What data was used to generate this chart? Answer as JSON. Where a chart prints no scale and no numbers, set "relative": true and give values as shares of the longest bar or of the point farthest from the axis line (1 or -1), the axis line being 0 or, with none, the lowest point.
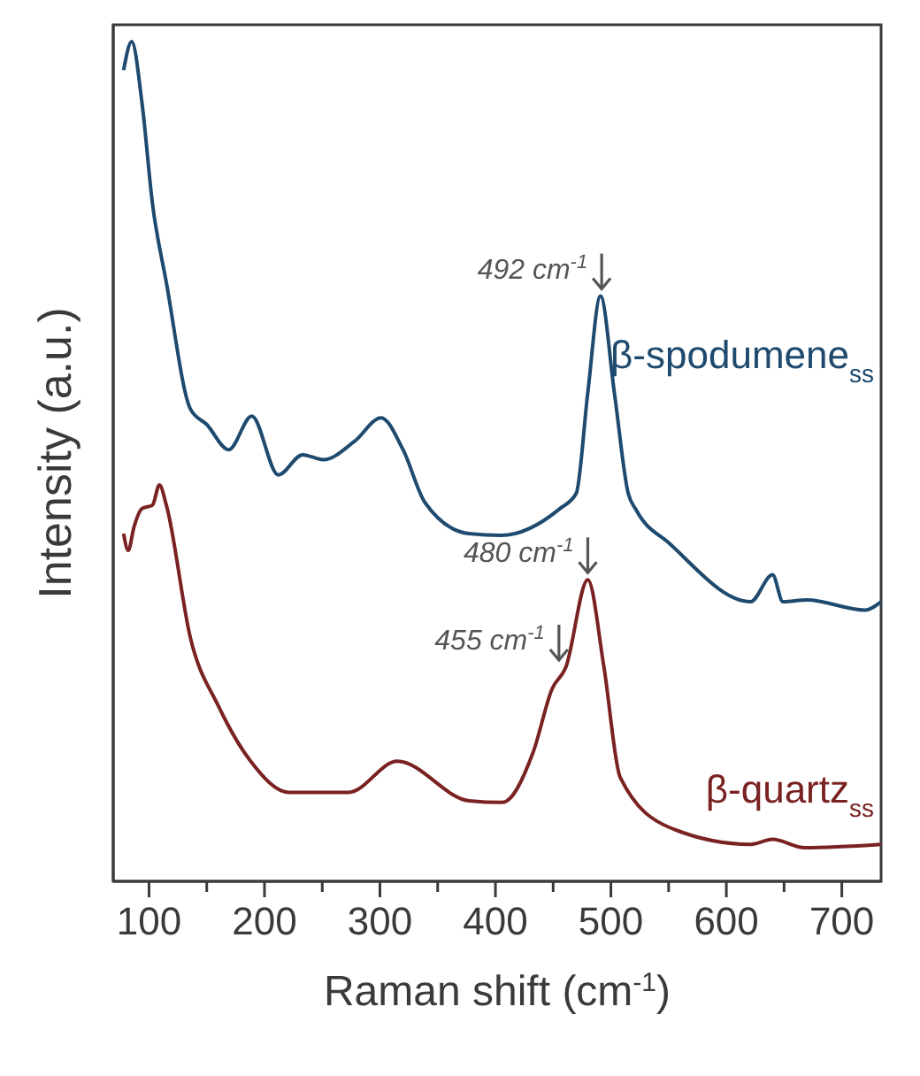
{
  "chart_data": {
    "type": "line",
    "relative": true,
    "xlabel": "Raman shift (cm$^{-1}$)",
    "ylabel": "Intensity (a.u.)",
    "xlim": [
      69,
      734
    ],
    "xticks": [
      100,
      {
        "value": 150,
        "label": null
      },
      200,
      {
        "value": 250,
        "label": null
      },
      300,
      {
        "value": 350,
        "label": null
      },
      400,
      {
        "value": 450,
        "label": null
      },
      500,
      {
        "value": 550,
        "label": null
      },
      600,
      {
        "value": 650,
        "label": null
      },
      700
    ],
    "marker": "none",
    "line_style": "solid",
    "series": [
      {
        "name": "β-spodumene$_{ss}$",
        "color": "#1d4a6e",
        "x": [
          78,
          85,
          94,
          103,
          115,
          136,
          150,
          169,
          189,
          212,
          233,
          251,
          278,
          301,
          320,
          339,
          377,
          405,
          456,
          470,
          480,
          491,
          503,
          515,
          522,
          551,
          621,
          640,
          649,
          670,
          720,
          734
        ],
        "values": [
          0.966,
          1.0,
          0.926,
          0.807,
          0.713,
          0.562,
          0.544,
          0.514,
          0.554,
          0.484,
          0.508,
          0.502,
          0.524,
          0.552,
          0.514,
          0.451,
          0.414,
          0.412,
          0.444,
          0.462,
          0.582,
          0.697,
          0.582,
          0.462,
          0.442,
          0.402,
          0.333,
          0.365,
          0.333,
          0.335,
          0.323,
          0.333
        ]
      },
      {
        "name": "β-quartz$_{ss}$",
        "color": "#7a2222",
        "x": [
          78,
          82,
          87,
          94,
          103,
          109,
          115,
          136,
          160,
          188,
          221,
          273,
          315,
          377,
          406,
          433,
          449,
          461,
          480,
          494,
          508,
          551,
          621,
          640,
          668,
          734
        ],
        "values": [
          0.414,
          0.394,
          0.422,
          0.444,
          0.448,
          0.472,
          0.448,
          0.289,
          0.209,
          0.143,
          0.106,
          0.106,
          0.143,
          0.096,
          0.094,
          0.155,
          0.229,
          0.255,
          0.359,
          0.255,
          0.124,
          0.064,
          0.044,
          0.05,
          0.04,
          0.044
        ]
      }
    ],
    "annotations": [
      {
        "text": "492 cm$^{-1}$",
        "x": 492,
        "y": 0.697
      },
      {
        "text": "480 cm$^{-1}$",
        "x": 480,
        "y": 0.359
      },
      {
        "text": "455 cm$^{-1}$",
        "x": 455,
        "y": 0.255
      }
    ]
  }
}
